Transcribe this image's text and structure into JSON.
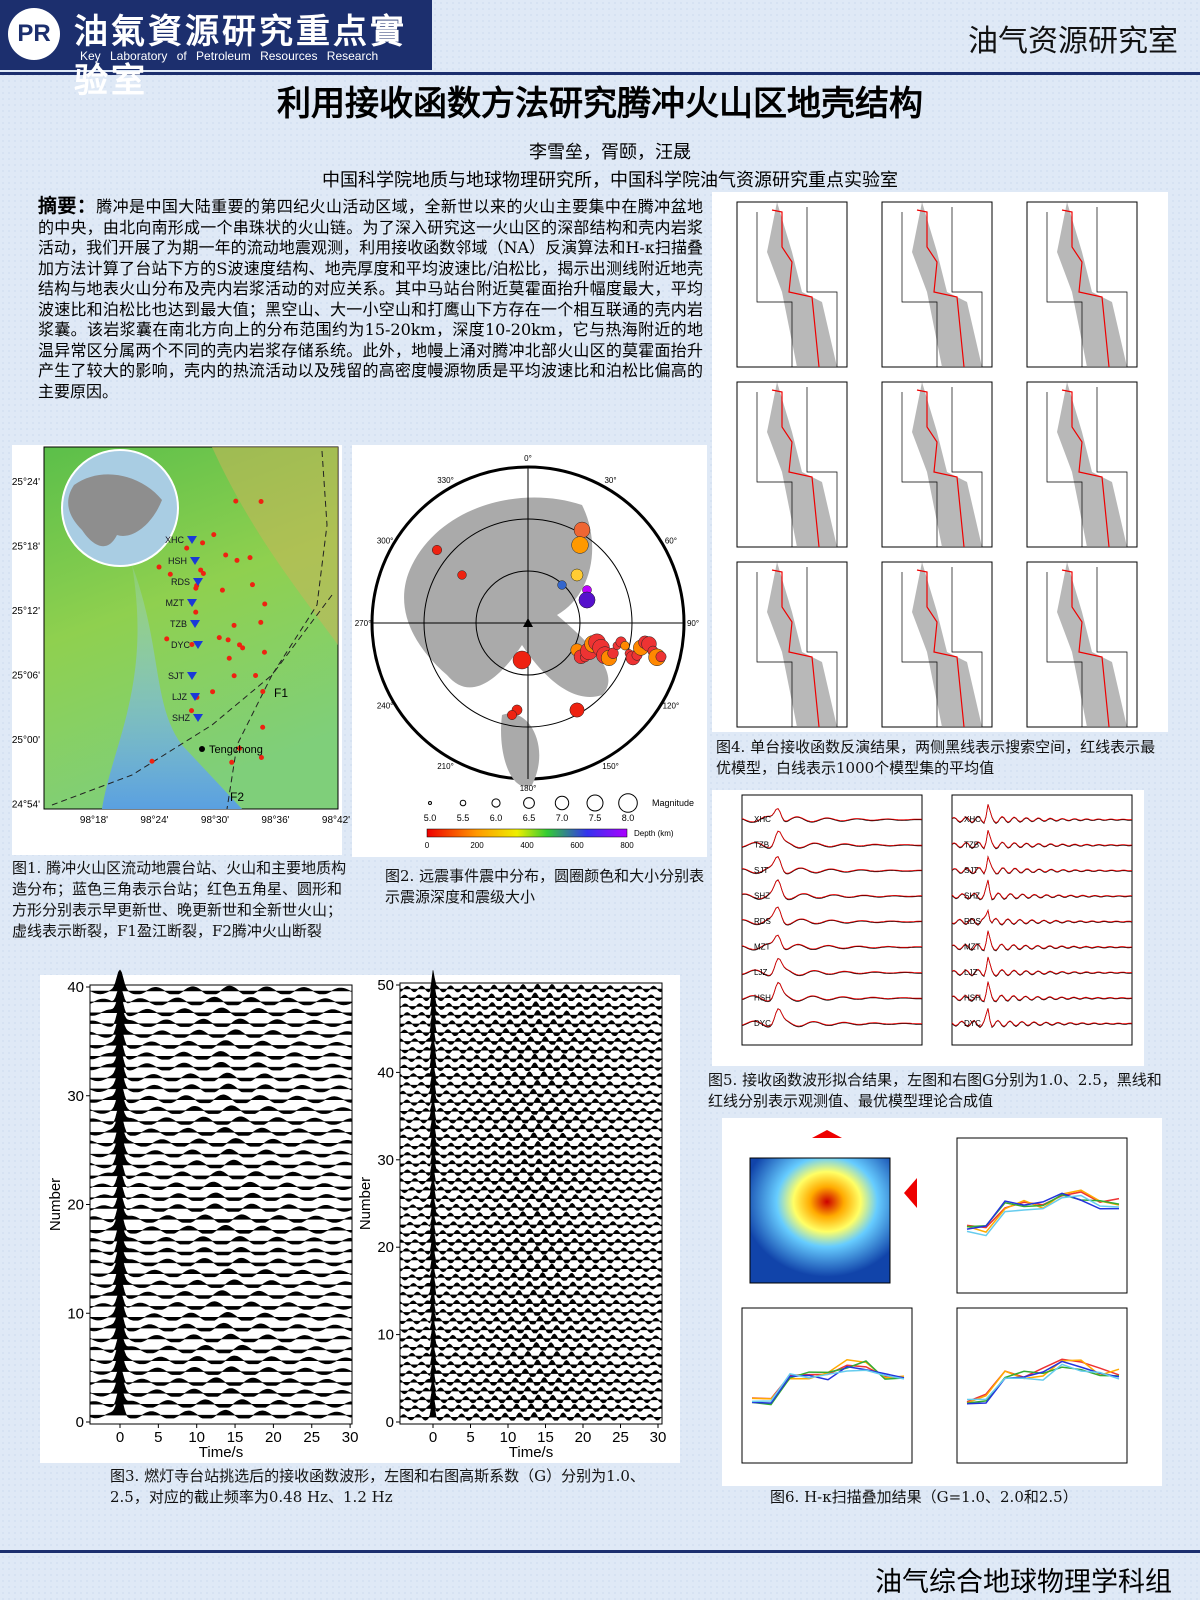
{
  "header": {
    "logo": "PR",
    "lab_name_cn": "油氣資源研究重点實验室",
    "lab_name_en": "Key Laboratory of Petroleum Resources Research",
    "right_title": "油气资源研究室"
  },
  "title": "利用接收函数方法研究腾冲火山区地壳结构",
  "authors": "李雪垒，胥颐，汪晟",
  "affiliation": "中国科学院地质与地球物理研究所，中国科学院油气资源研究重点实验室",
  "abstract": {
    "label": "摘要：",
    "text": "腾冲是中国大陆重要的第四纪火山活动区域，全新世以来的火山主要集中在腾冲盆地的中央，由北向南形成一个串珠状的火山链。为了深入研究这一火山区的深部结构和壳内岩浆活动，我们开展了为期一年的流动地震观测，利用接收函数邻域（NA）反演算法和H-κ扫描叠加方法计算了台站下方的S波速度结构、地壳厚度和平均波速比/泊松比，揭示出测线附近地壳结构与地表火山分布及壳内岩浆活动的对应关系。其中马站台附近莫霍面抬升幅度最大，平均波速比和泊松比也达到最大值；黑空山、大一小空山和打鹰山下方存在一个相互联通的壳内岩浆囊。该岩浆囊在南北方向上的分布范围约为15-20km，深度10-20km，它与热海附近的地温异常区分属两个不同的壳内岩浆存储系统。此外，地幔上涌对腾冲北部火山区的莫霍面抬升产生了较大的影响，壳内的热流活动以及残留的高密度幔源物质是平均波速比和泊松比偏高的主要原因。"
  },
  "fig1": {
    "lat_labels": [
      "25°24'",
      "25°18'",
      "25°12'",
      "25°06'",
      "25°00'",
      "24°54'"
    ],
    "lon_labels": [
      "98°18'",
      "98°24'",
      "98°30'",
      "98°36'",
      "98°42'"
    ],
    "stations": [
      "XHC",
      "HSH",
      "RDS",
      "MZT",
      "TZB",
      "DYC",
      "SJT",
      "LJZ",
      "SHZ"
    ],
    "town": "Tengchong",
    "faults": [
      "F1",
      "F2"
    ],
    "caption": "图1. 腾冲火山区流动地震台站、火山和主要地质构造分布；蓝色三角表示台站；红色五角星、圆形和方形分别表示早更新世、晚更新世和全新世火山；虚线表示断裂，F1盈江断裂，F2腾冲火山断裂"
  },
  "fig2": {
    "azimuths": [
      "0°",
      "30°",
      "60°",
      "90°",
      "120°",
      "150°",
      "180°",
      "210°",
      "240°",
      "270°",
      "300°",
      "330°"
    ],
    "magnitudes": [
      "5.0",
      "5.5",
      "6.0",
      "6.5",
      "7.0",
      "7.5",
      "8.0"
    ],
    "magnitude_label": "Magnitude",
    "depths": [
      "0",
      "200",
      "400",
      "600",
      "800"
    ],
    "depth_label": "Depth (km)",
    "caption": "图2. 远震事件震中分布，圆圈颜色和大小分别表示震源深度和震级大小"
  },
  "fig3": {
    "left": {
      "yticks": [
        0,
        10,
        20,
        30,
        40
      ],
      "xticks": [
        0,
        5,
        10,
        15,
        20,
        25,
        30
      ]
    },
    "right": {
      "yticks": [
        0,
        10,
        20,
        30,
        40,
        50
      ],
      "xticks": [
        0,
        5,
        10,
        15,
        20,
        25,
        30
      ]
    },
    "ylabel": "Number",
    "xlabel": "Time/s",
    "caption": "图3. 燃灯寺台站挑选后的接收函数波形，左图和右图高斯系数（G）分别为1.0、2.5，对应的截止频率为0.48 Hz、1.2 Hz"
  },
  "fig4": {
    "caption": "图4. 单台接收函数反演结果，两侧黑线表示搜索空间，红线表示最优模型，白线表示1000个模型集的平均值"
  },
  "fig5": {
    "left_stations": [
      "XHC",
      "TZB",
      "SJT",
      "SHZ",
      "RDS",
      "MZT",
      "LJZ",
      "HSH",
      "DYC"
    ],
    "right_stations": [
      "XHC",
      "TZB",
      "SJT",
      "SHZ",
      "RDS",
      "MZT",
      "LJZ",
      "HSH",
      "DYC"
    ],
    "caption": "图5. 接收函数波形拟合结果，左图和右图G分别为1.0、2.5，黑线和红线分别表示观测值、最优模型理论合成值"
  },
  "fig6": {
    "caption": "图6. H-κ扫描叠加结果（G=1.0、2.0和2.5）"
  },
  "footer": "油气综合地球物理学科组"
}
